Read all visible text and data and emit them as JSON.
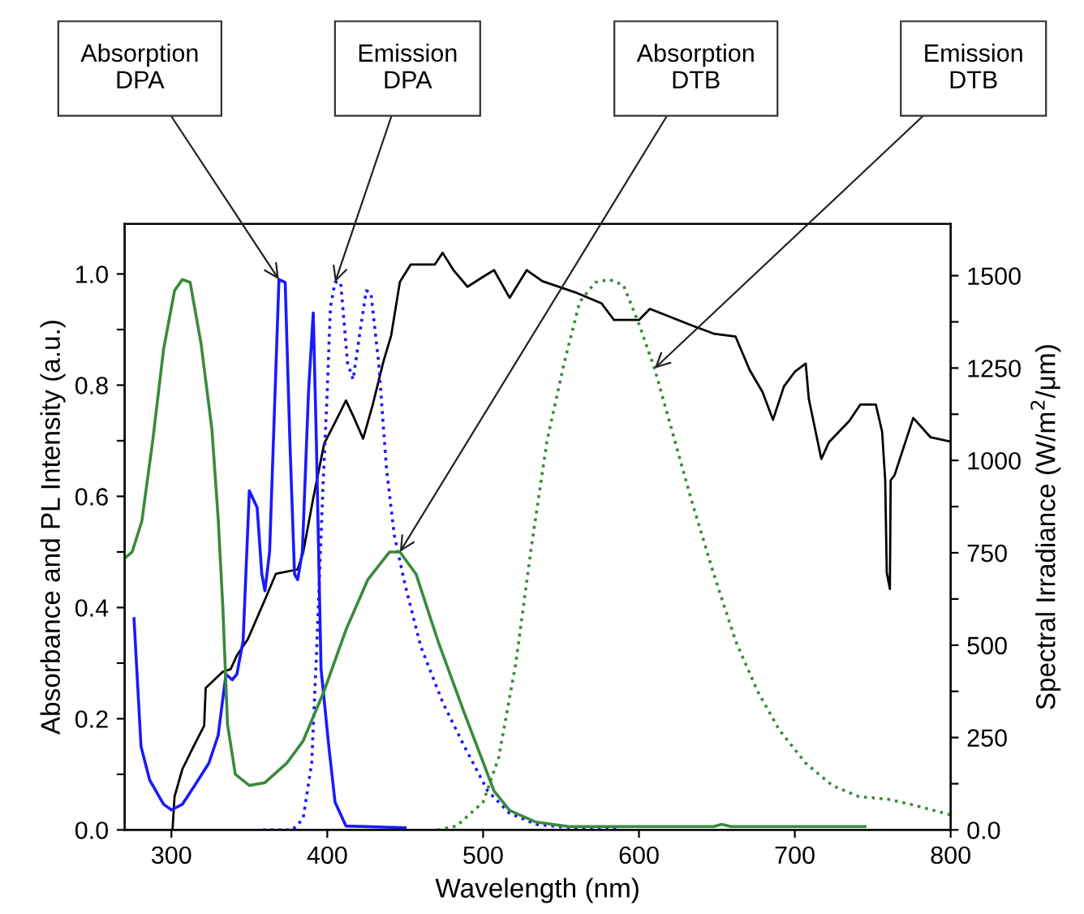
{
  "chart_data": {
    "type": "line",
    "xlabel": "Wavelength (nm)",
    "ylabel": "Absorbance and PL Intensity (a.u.)",
    "y2label": "Spectral Irradiance (W/m$^{2}$/μm)",
    "xlim": [
      270,
      800
    ],
    "xticks": [
      300,
      400,
      500,
      600,
      700,
      800
    ],
    "ylim": [
      0,
      1.09
    ],
    "yticks": [
      {
        "value": 0,
        "label": "0.0"
      },
      {
        "value": 0.1,
        "label": null
      },
      {
        "value": 0.2,
        "label": "0.2"
      },
      {
        "value": 0.3,
        "label": null
      },
      {
        "value": 0.4,
        "label": "0.4"
      },
      {
        "value": 0.5,
        "label": null
      },
      {
        "value": 0.6,
        "label": "0.6"
      },
      {
        "value": 0.7,
        "label": null
      },
      {
        "value": 0.8,
        "label": "0.8"
      },
      {
        "value": 0.9,
        "label": null
      },
      {
        "value": 1.0,
        "label": "1.0"
      }
    ],
    "y2lim": [
      0,
      1640
    ],
    "y2ticks": [
      {
        "value": 0,
        "label": "0.0"
      },
      {
        "value": 125,
        "label": null
      },
      250,
      {
        "value": 375,
        "label": null
      },
      500,
      {
        "value": 625,
        "label": null
      },
      750,
      {
        "value": 875,
        "label": null
      },
      1000,
      {
        "value": 1125,
        "label": null
      },
      1250,
      {
        "value": 1375,
        "label": null
      },
      1500
    ],
    "series": [
      {
        "color": "#1a1aff",
        "line_style": "solid",
        "x": [
          276,
          280.5,
          286,
          295,
          300,
          307,
          315,
          324,
          330,
          335,
          339,
          342,
          346,
          350,
          355,
          358,
          360,
          363,
          369,
          373,
          376,
          379,
          381,
          384,
          388,
          391,
          393,
          396,
          401,
          405,
          412,
          450
        ],
        "values": [
          0.38,
          0.15,
          0.09,
          0.046,
          0.036,
          0.046,
          0.08,
          0.12,
          0.17,
          0.28,
          0.27,
          0.28,
          0.34,
          0.61,
          0.58,
          0.46,
          0.43,
          0.5,
          0.99,
          0.985,
          0.7,
          0.46,
          0.45,
          0.5,
          0.79,
          0.93,
          0.7,
          0.29,
          0.15,
          0.05,
          0.007,
          0.004
        ]
      },
      {
        "color": "#1a1aff",
        "line_style": "dotted",
        "x": [
          358.6,
          377.6,
          384.5,
          390,
          393,
          397,
          400,
          402,
          405,
          408.6,
          413,
          416.6,
          420.7,
          425,
          428,
          433,
          438,
          443,
          450,
          460,
          474,
          488,
          503,
          517,
          534,
          552,
          588
        ],
        "values": [
          0,
          0,
          0.02,
          0.12,
          0.31,
          0.6,
          0.79,
          0.94,
          0.985,
          0.985,
          0.84,
          0.81,
          0.89,
          0.97,
          0.966,
          0.84,
          0.65,
          0.53,
          0.44,
          0.33,
          0.23,
          0.15,
          0.07,
          0.03,
          0.01,
          0.005,
          0.003
        ]
      },
      {
        "color": "#3a8a3a",
        "line_style": "solid",
        "x": [
          270.7,
          274.8,
          281,
          288,
          295,
          302,
          307,
          312,
          319,
          326,
          330,
          333,
          336,
          341,
          350,
          360,
          374,
          384.5,
          398,
          412,
          426,
          440,
          446.6,
          457,
          471,
          488,
          507,
          517,
          534,
          555,
          648,
          653,
          659,
          745
        ],
        "values": [
          0.49,
          0.5,
          0.555,
          0.7,
          0.865,
          0.97,
          0.99,
          0.985,
          0.875,
          0.72,
          0.56,
          0.4,
          0.19,
          0.1,
          0.08,
          0.085,
          0.12,
          0.16,
          0.25,
          0.36,
          0.45,
          0.5,
          0.5,
          0.46,
          0.34,
          0.21,
          0.07,
          0.035,
          0.014,
          0.006,
          0.006,
          0.01,
          0.006,
          0.006
        ]
      },
      {
        "color": "#3a8a3a",
        "line_style": "dotted",
        "x": [
          470.7,
          483,
          500,
          510,
          521,
          531,
          541,
          552,
          562,
          572,
          581,
          590,
          600,
          610,
          621,
          634,
          648,
          662,
          676,
          690,
          707,
          724,
          741,
          760,
          776,
          800
        ],
        "values": [
          0,
          0.007,
          0.05,
          0.13,
          0.3,
          0.51,
          0.7,
          0.84,
          0.95,
          0.985,
          0.99,
          0.98,
          0.91,
          0.83,
          0.72,
          0.59,
          0.46,
          0.34,
          0.25,
          0.18,
          0.12,
          0.08,
          0.06,
          0.055,
          0.045,
          0.027
        ]
      },
      {
        "color": "#000000",
        "line_style": "solid",
        "axis": "y2",
        "x": [
          300.7,
          302,
          307,
          314,
          321,
          322,
          333,
          338,
          342,
          349,
          360,
          367,
          381,
          384.5,
          391,
          398,
          405,
          412,
          417,
          423,
          429,
          436,
          441,
          446.6,
          453.5,
          469,
          474,
          481,
          490,
          500,
          507,
          517,
          528,
          538,
          559,
          576,
          584,
          600,
          607,
          634,
          648,
          662,
          671,
          679.3,
          686,
          693,
          700,
          707,
          709,
          717,
          722,
          735,
          742,
          752,
          756,
          758,
          759,
          761,
          761.5,
          764,
          776,
          787,
          800
        ],
        "values": [
          0,
          90,
          164,
          224,
          282,
          384,
          428,
          435,
          472,
          516,
          623,
          693,
          705,
          750,
          898,
          1045,
          1103,
          1162,
          1117,
          1059,
          1148,
          1267,
          1338,
          1483,
          1530,
          1530,
          1562,
          1515,
          1470,
          1497,
          1515,
          1440,
          1515,
          1485,
          1455,
          1425,
          1380,
          1380,
          1410,
          1365,
          1343,
          1335,
          1245,
          1185,
          1110,
          1200,
          1240,
          1262,
          1166,
          1004,
          1050,
          1107,
          1151,
          1151,
          1078,
          946,
          696,
          652,
          946,
          960,
          1115,
          1063,
          1051
        ]
      }
    ],
    "annotations": [
      {
        "text": "Absorption\nDPA",
        "x": 369,
        "y": 0.99
      },
      {
        "text": "Emission\nDPA",
        "x": 405,
        "y": 0.985
      },
      {
        "text": "Absorption\nDTB",
        "x": 446.6,
        "y": 0.5
      },
      {
        "text": "Emission\nDTB",
        "x": 610,
        "y": 0.83
      }
    ]
  }
}
